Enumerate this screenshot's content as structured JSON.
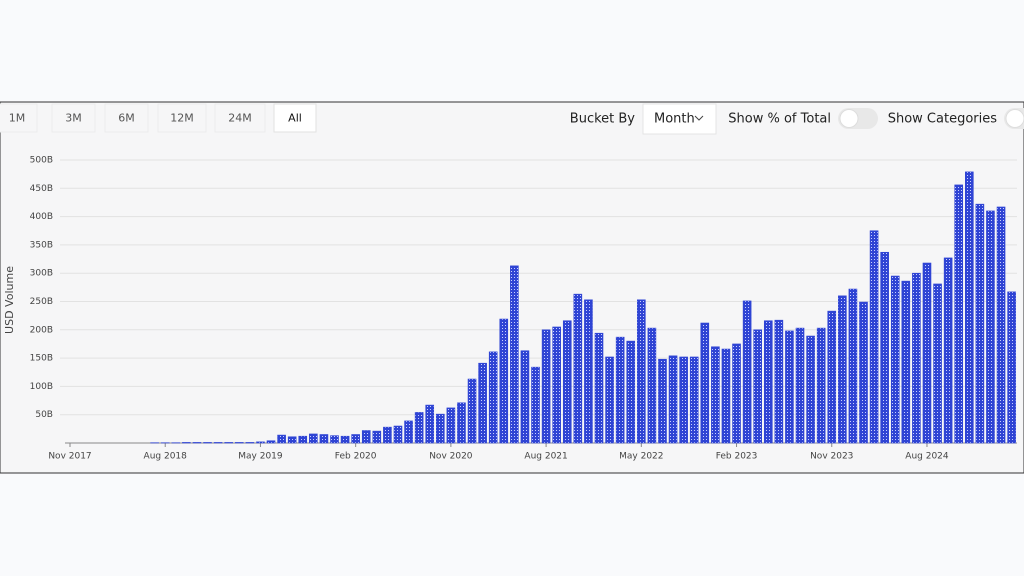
{
  "toolbar": {
    "ranges": [
      "1M",
      "3M",
      "6M",
      "12M",
      "24M",
      "All"
    ],
    "bucket_by_label": "Bucket By",
    "bucket_by_value": "Month",
    "toggles": [
      "Show % of Total",
      "Show Categories"
    ]
  },
  "chart_data": {
    "type": "bar",
    "y_label": "USD Volume",
    "color": "#2f44d4",
    "categories": [
      "Nov 2017",
      null,
      null,
      null,
      null,
      null,
      null,
      null,
      null,
      "Aug 2018",
      null,
      null,
      null,
      null,
      null,
      null,
      null,
      null,
      "May 2019",
      null,
      null,
      null,
      null,
      null,
      null,
      null,
      null,
      "Feb 2020",
      null,
      null,
      null,
      null,
      null,
      null,
      null,
      null,
      "Nov 2020",
      null,
      null,
      null,
      null,
      null,
      null,
      null,
      null,
      "Aug 2021",
      null,
      null,
      null,
      null,
      null,
      null,
      null,
      null,
      "May 2022",
      null,
      null,
      null,
      null,
      null,
      null,
      null,
      null,
      "Feb 2023",
      null,
      null,
      null,
      null,
      null,
      null,
      null,
      null,
      "Nov 2023",
      null,
      null,
      null,
      null,
      null,
      null,
      null,
      null,
      "Aug 2024",
      null,
      null,
      null,
      null,
      null,
      null,
      null,
      null
    ],
    "values": [
      0,
      0,
      0,
      0,
      0,
      0,
      0,
      0,
      0.5,
      0.5,
      0.5,
      1,
      1,
      1,
      1,
      1,
      1,
      1,
      2,
      4,
      14,
      11,
      12,
      16,
      15,
      13,
      12,
      15,
      22,
      21,
      28,
      30,
      39,
      54,
      67,
      51,
      62,
      71,
      113,
      141,
      161,
      219,
      313,
      163,
      134,
      200,
      205,
      216,
      263,
      253,
      194,
      152,
      187,
      180,
      253,
      203,
      148,
      154,
      152,
      152,
      212,
      170,
      166,
      175,
      251,
      200,
      216,
      217,
      198,
      203,
      189,
      203,
      233,
      260,
      272,
      249,
      375,
      337,
      295,
      286,
      300,
      318,
      281,
      327,
      456,
      479,
      422,
      410,
      417,
      267
    ],
    "ylim": [
      0,
      500
    ],
    "yticks": [
      {
        "value": 50,
        "label": "50B"
      },
      {
        "value": 100,
        "label": "100B"
      },
      {
        "value": 150,
        "label": "150B"
      },
      {
        "value": 200,
        "label": "200B"
      },
      {
        "value": 250,
        "label": "250B"
      },
      {
        "value": 300,
        "label": "300B"
      },
      {
        "value": 350,
        "label": "350B"
      },
      {
        "value": 400,
        "label": "400B"
      },
      {
        "value": 450,
        "label": "450B"
      },
      {
        "value": 500,
        "label": "500B"
      }
    ],
    "grid": true
  }
}
